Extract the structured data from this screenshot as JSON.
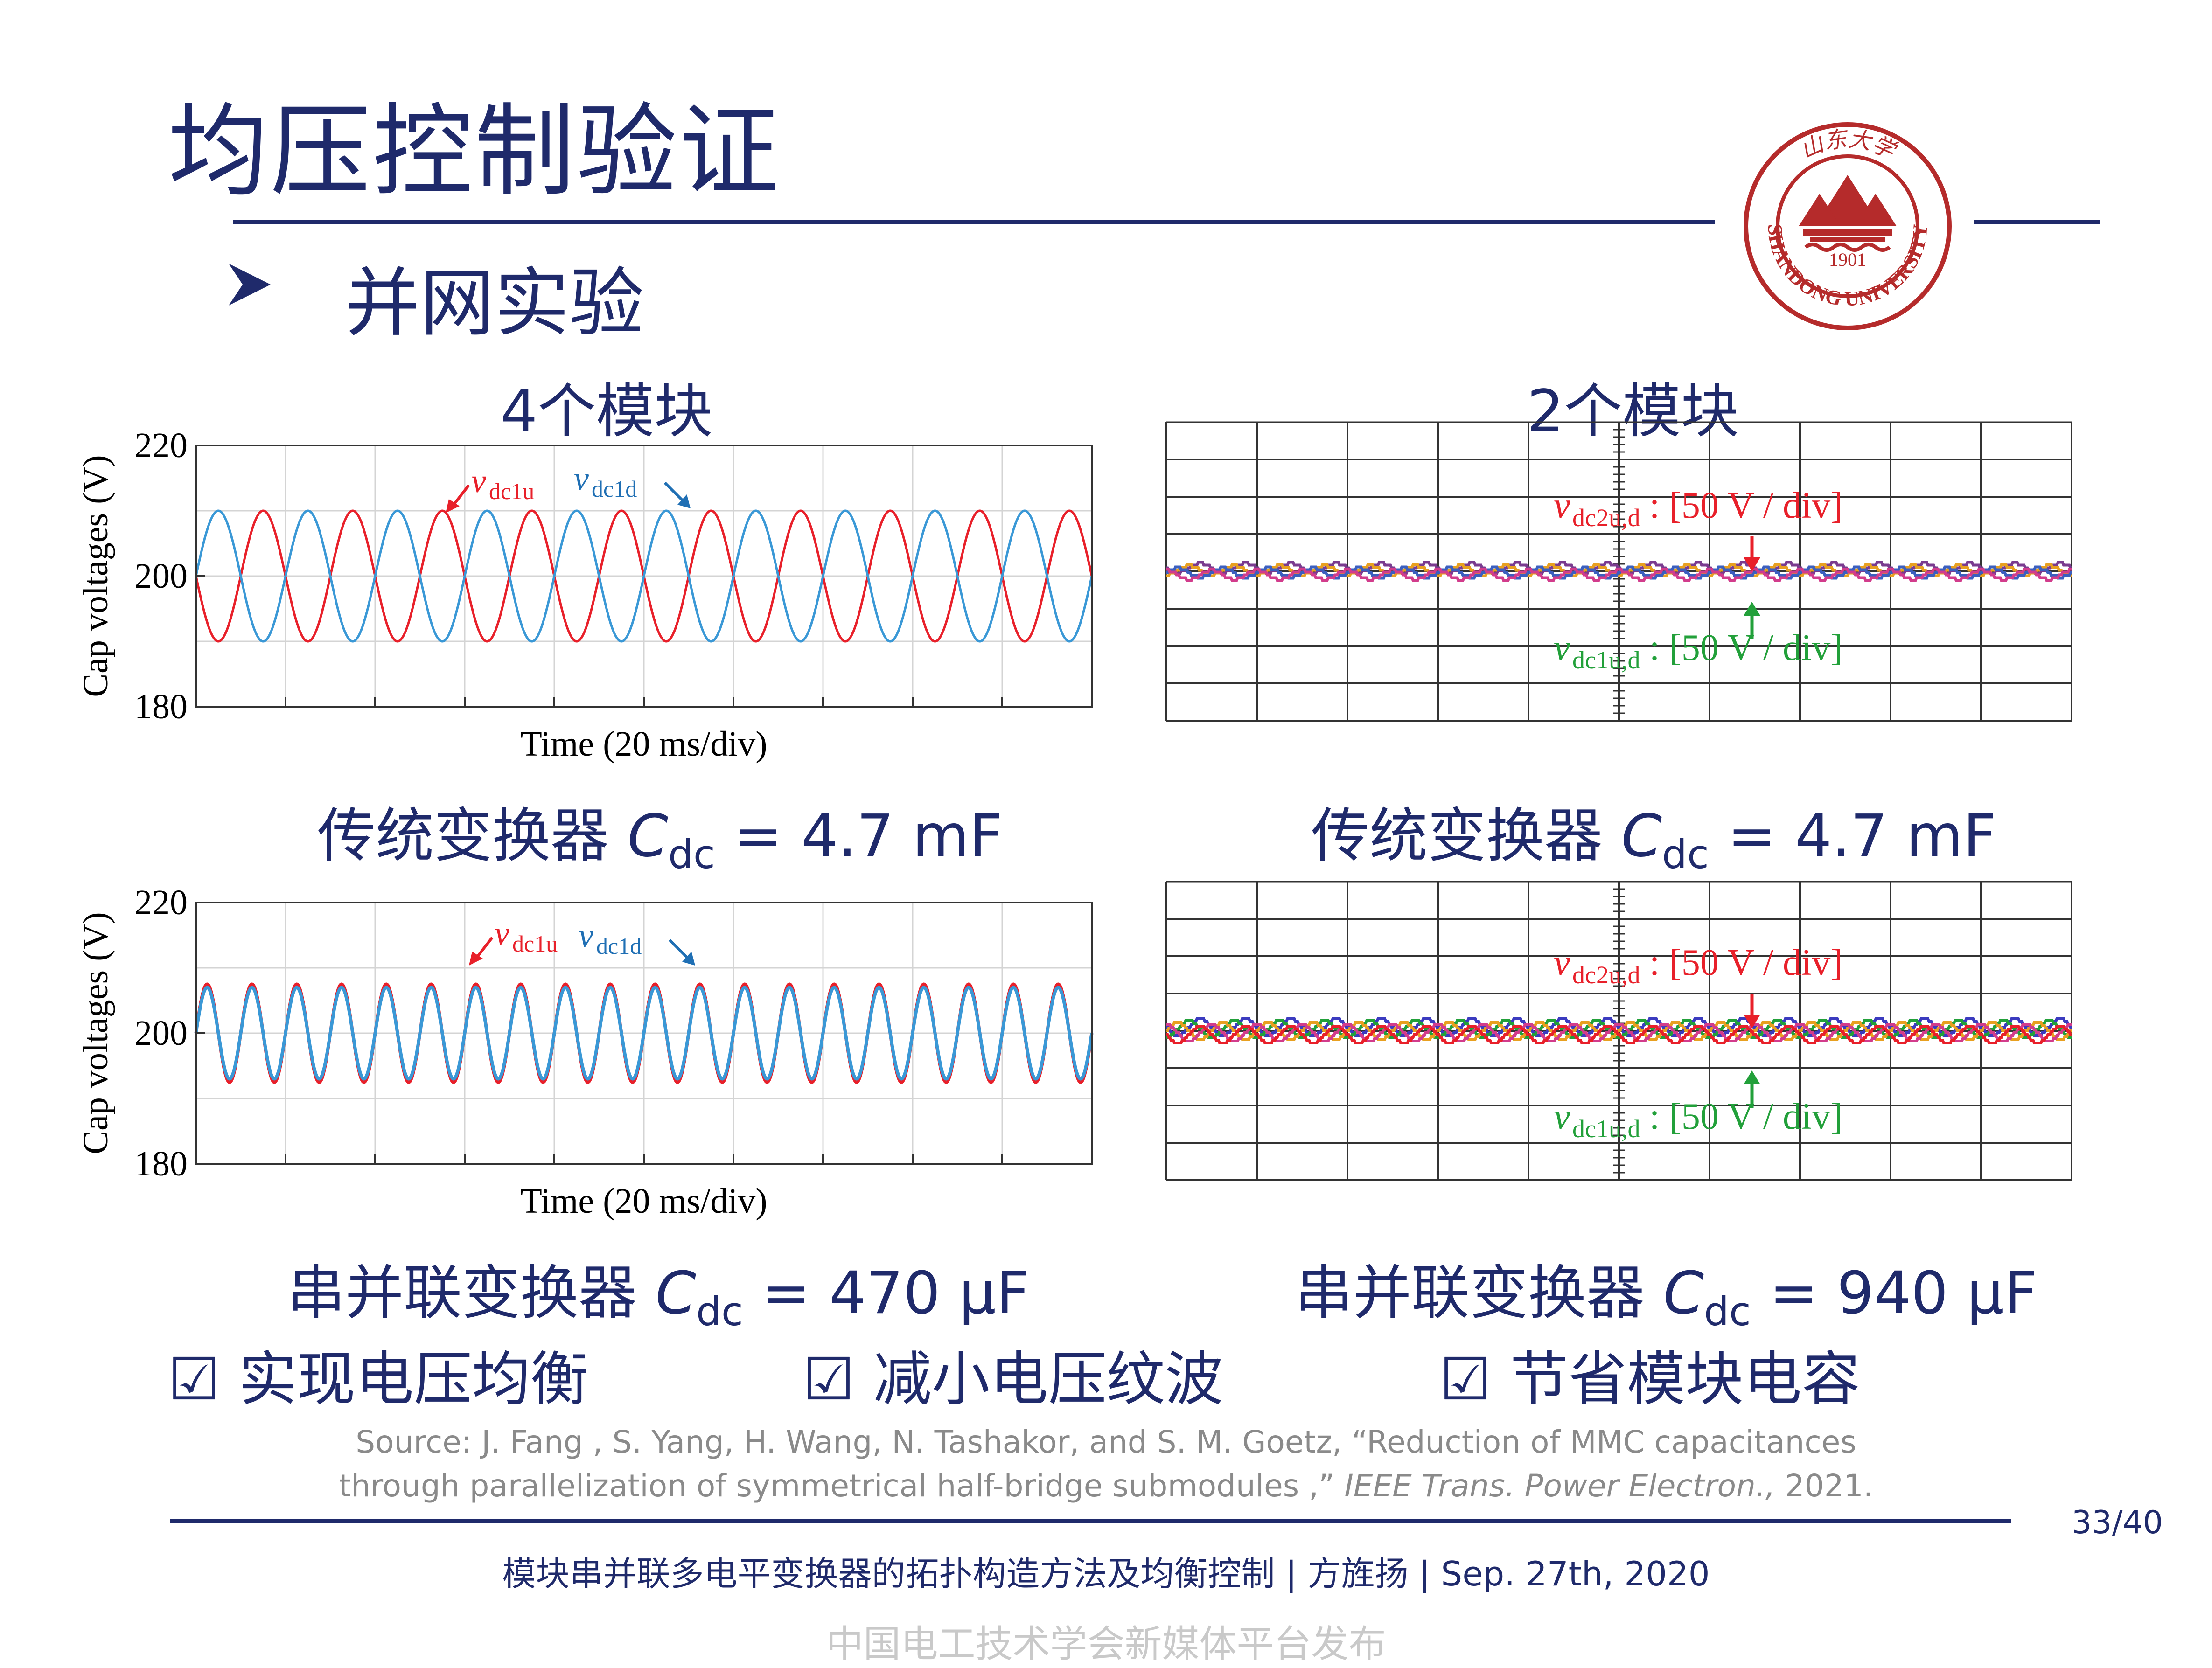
{
  "title": "均压控制验证",
  "subtitle": "并网实验",
  "logo": {
    "top_text": "山东大学",
    "ring_text": "SHANDONG UNIVERSITY",
    "year": "1901",
    "color": "#b52b2b"
  },
  "left_column": {
    "header": "4个模块",
    "caption_top": {
      "prefix": "传统变换器 ",
      "c": "C",
      "sub": "dc",
      "suffix": " = 4.7 mF"
    },
    "caption_bottom": {
      "prefix": "串并联变换器 ",
      "c": "C",
      "sub": "dc",
      "suffix": " = 470 μF"
    }
  },
  "right_column": {
    "header": "2个模块",
    "caption_top": {
      "prefix": "传统变换器 ",
      "c": "C",
      "sub": "dc",
      "suffix": " = 4.7 mF"
    },
    "caption_bottom": {
      "prefix": "串并联变换器 ",
      "c": "C",
      "sub": "dc",
      "suffix": " = 940 μF"
    }
  },
  "sim_plot": {
    "ylabel": "Cap voltages (V)",
    "xlabel": "Time (20 ms/div)",
    "ytick_labels": [
      "220",
      "200",
      "180"
    ],
    "legend_u": {
      "v": "v",
      "sub": "dc1u"
    },
    "legend_d": {
      "v": "v",
      "sub": "dc1d"
    }
  },
  "scope_plot": {
    "label_top": {
      "v": "v",
      "sub": "dc2u,d",
      "text": ": [50 V / div]"
    },
    "label_bottom": {
      "v": "v",
      "sub": "dc1u,d",
      "text": ": [50 V / div]"
    }
  },
  "chart_data": [
    {
      "type": "line",
      "ylabel": "Cap voltages (V)",
      "xlabel": "Time (20 ms/div)",
      "ylim": [
        180,
        220
      ],
      "yticks": [
        180,
        200,
        220
      ],
      "x_divisions": 10,
      "series": [
        {
          "name": "vdc1u",
          "color": "#e8202a",
          "mean": 200,
          "amplitude": 10,
          "cycles": 10,
          "phase_deg": 180
        },
        {
          "name": "vdc1d",
          "color": "#3a98d6",
          "mean": 200,
          "amplitude": 10,
          "cycles": 10,
          "phase_deg": 0
        }
      ]
    },
    {
      "type": "line",
      "ylabel": "Cap voltages (V)",
      "xlabel": "Time (20 ms/div)",
      "ylim": [
        180,
        220
      ],
      "yticks": [
        180,
        200,
        220
      ],
      "x_divisions": 10,
      "series": [
        {
          "name": "vdc1u",
          "color": "#e8202a",
          "mean": 200,
          "amplitude": 7.5,
          "cycles": 20,
          "phase_deg": 0
        },
        {
          "name": "vdc1d",
          "color": "#3a98d6",
          "mean": 200,
          "amplitude": 7,
          "cycles": 20,
          "phase_deg": 0
        }
      ]
    }
  ],
  "checks": [
    "☑  实现电压均衡",
    "☑  减小电压纹波",
    "☑  节省模块电容"
  ],
  "source": {
    "line1": "Source: J. Fang , S. Yang, H. Wang, N. Tashakor, and S. M. Goetz, “Reduction of MMC capacitances",
    "line2_a": "through parallelization of symmetrical half-bridge submodules ,” ",
    "line2_journal": "IEEE Trans. Power Electron.,",
    "line2_b": " 2021."
  },
  "page_number": "33/40",
  "footer": "模块串并联多电平变换器的拓扑构造方法及均衡控制 | 方旌扬 | Sep. 27th, 2020",
  "watermark": "中国电工技术学会新媒体平台发布"
}
